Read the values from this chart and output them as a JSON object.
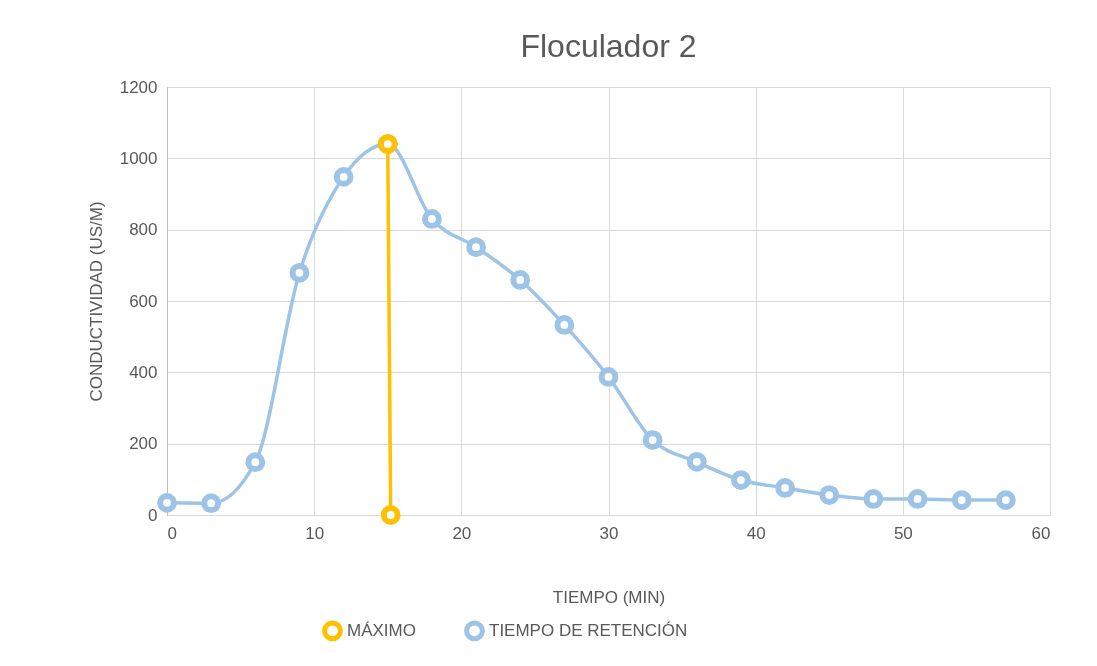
{
  "chart_data": {
    "type": "line",
    "title": "Floculador 2",
    "xlabel": "TIEMPO (MIN)",
    "ylabel": "CONDUCTIVIDAD (US/M)",
    "xlim": [
      0,
      60
    ],
    "xticks": [
      0,
      10,
      20,
      30,
      40,
      50,
      60
    ],
    "ylim": [
      0,
      1200
    ],
    "yticks": [
      0,
      200,
      400,
      600,
      800,
      1000,
      1200
    ],
    "grid": true,
    "legend": "bottom",
    "marker": "circle",
    "line_style": "solid",
    "series": [
      {
        "name": "MÁXIMO",
        "color": "#ffc000",
        "x": [
          15.2,
          15
        ],
        "values": [
          0,
          1040
        ]
      },
      {
        "name": "TIEMPO DE RETENCIÓN",
        "color": "#9dc3e6",
        "x": [
          0,
          3,
          6,
          9,
          12,
          15,
          18,
          21,
          24,
          27,
          30,
          33,
          36,
          39,
          42,
          45,
          48,
          51,
          54,
          57
        ],
        "values": [
          34,
          33,
          148,
          679,
          948,
          1040,
          830,
          751,
          659,
          533,
          387,
          210,
          149,
          98,
          76,
          56,
          45,
          45,
          42,
          42
        ]
      }
    ]
  }
}
